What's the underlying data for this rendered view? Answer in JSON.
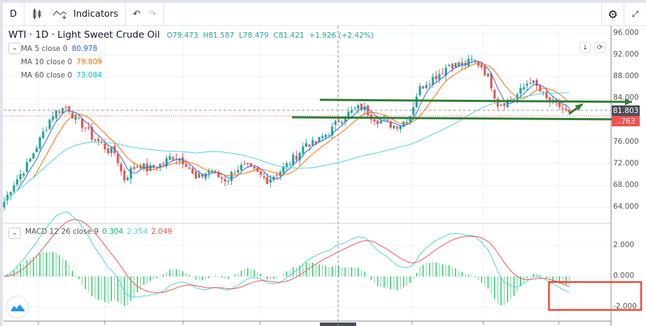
{
  "toolbar": {
    "interval": "D",
    "indicators_label": "Indicators",
    "icons": [
      "candles-icon",
      "indicators-icon",
      "undo-icon",
      "redo-icon",
      "gear-icon",
      "fullscreen-icon"
    ]
  },
  "symbol": {
    "title": "WTI · 1D · Light Sweet Crude Oil",
    "open": "O79.473",
    "high": "H81.587",
    "low": "L78.479",
    "close": "C81.421",
    "change": "+1.926 (+2.42%)"
  },
  "moving_averages": [
    {
      "label": "MA 5 close 0",
      "value": "80.978",
      "color": "#2962ff"
    },
    {
      "label": "MA 10 close 0",
      "value": "79.809",
      "color": "#ff6d00"
    },
    {
      "label": "MA 60 close 0",
      "value": "73.084",
      "color": "#00bcd4"
    }
  ],
  "macd": {
    "label": "MACD 12 26 close 9",
    "hist": "0.304",
    "macd": "2.354",
    "signal": "2.049",
    "hist_color": "#00c853",
    "macd_color": "#4dd0e1",
    "signal_color": "#ef5350"
  },
  "price_axis": [
    "96.000",
    "92.000",
    "88.000",
    "84.000",
    "81.803",
    "76.000",
    "72.000",
    "68.000",
    "64.000"
  ],
  "macd_axis": [
    "2.000",
    "0.000",
    "-2.000"
  ],
  "crosshair_price": "81.803",
  "last_price_partial": "..763",
  "colors": {
    "up": "#26a69a",
    "down": "#ef5350",
    "drawing": "#2e7d32",
    "highlight_box": "#f44336"
  },
  "chart_data": {
    "type": "candlestick",
    "timeframe": "1D",
    "ylim": [
      62,
      98
    ],
    "approx_closes": [
      65,
      68,
      70,
      72,
      75,
      78,
      81,
      82,
      82.5,
      80,
      79,
      77,
      76,
      74.5,
      74,
      69,
      71,
      72,
      71,
      71.5,
      72,
      73.5,
      73,
      72,
      69,
      70,
      71,
      69.5,
      69,
      71,
      71.5,
      71,
      70,
      69,
      70,
      71,
      72.5,
      74,
      76,
      75.5,
      77,
      78,
      80,
      81,
      82,
      82.5,
      81,
      80,
      79.5,
      79,
      79.5,
      81,
      85.5,
      87,
      88,
      89,
      90.5,
      90,
      90.5,
      91,
      90,
      87.5,
      83,
      83.5,
      84,
      85.5,
      87.5,
      86,
      84,
      83,
      82.5,
      81
    ]
  }
}
